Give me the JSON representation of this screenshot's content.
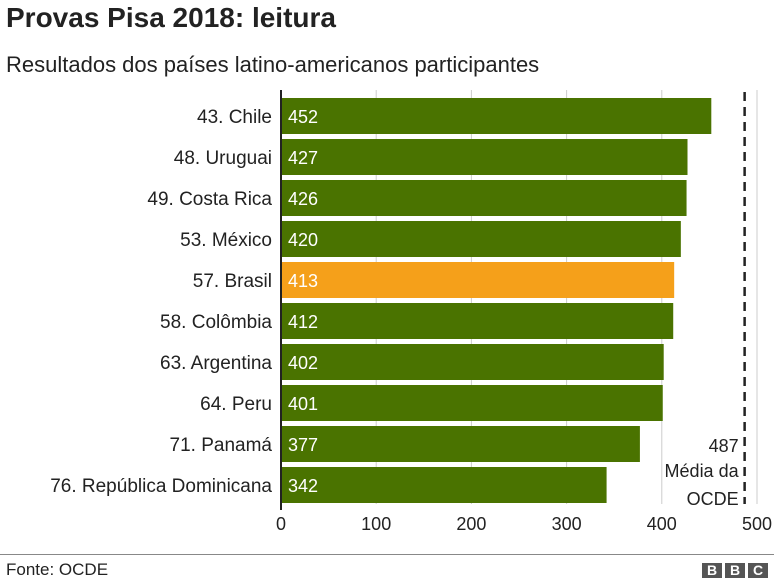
{
  "chart_data": {
    "type": "bar",
    "orientation": "horizontal",
    "title": "Provas Pisa 2018: leitura",
    "subtitle": "Resultados dos países latino-americanos participantes",
    "categories": [
      "43. Chile",
      "48. Uruguai",
      "49. Costa Rica",
      "53. México",
      "57. Brasil",
      "58. Colômbia",
      "63. Argentina",
      "64. Peru",
      "71. Panamá",
      "76. República Dominicana"
    ],
    "values": [
      452,
      427,
      426,
      420,
      413,
      412,
      402,
      401,
      377,
      342
    ],
    "highlight": "57. Brasil",
    "colors": {
      "bar": "#4a7300",
      "highlight": "#f5a01a",
      "grid": "#cccccc",
      "axis": "#222222"
    },
    "xlim": [
      0,
      500
    ],
    "xticks": [
      0,
      100,
      200,
      300,
      400,
      500
    ],
    "grid": true,
    "reference_line": {
      "value": 487,
      "label_value": "487",
      "label_lines": [
        "Média da",
        "OCDE"
      ],
      "style": "dashed"
    }
  },
  "footer": {
    "source": "Fonte: OCDE",
    "logo": [
      "B",
      "B",
      "C"
    ]
  }
}
